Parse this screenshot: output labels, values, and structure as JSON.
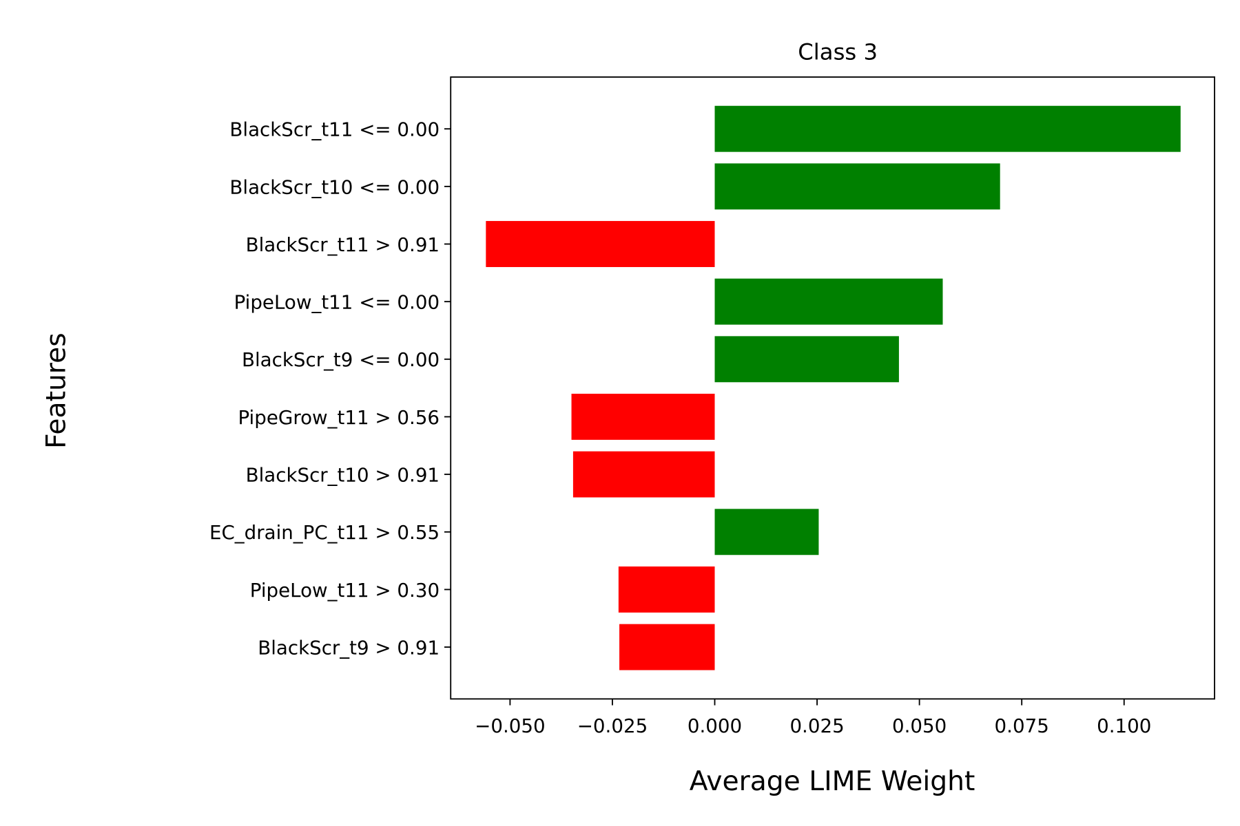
{
  "chart_data": {
    "type": "bar",
    "orientation": "horizontal",
    "title": "Class 3",
    "xlabel": "Average LIME Weight",
    "ylabel": "Features",
    "xlim": [
      -0.0645,
      0.1221
    ],
    "xticks": [
      -0.05,
      -0.025,
      0.0,
      0.025,
      0.05,
      0.075,
      0.1
    ],
    "xtick_labels": [
      "−0.050",
      "−0.025",
      "0.000",
      "0.025",
      "0.050",
      "0.075",
      "0.100"
    ],
    "categories": [
      "BlackScr_t11 <= 0.00",
      "BlackScr_t10 <= 0.00",
      "BlackScr_t11 > 0.91",
      "PipeLow_t11 <= 0.00",
      "BlackScr_t9 <= 0.00",
      "PipeGrow_t11 > 0.56",
      "BlackScr_t10 > 0.91",
      "EC_drain_PC_t11 > 0.55",
      "PipeLow_t11 > 0.30",
      "BlackScr_t9 > 0.91"
    ],
    "values": [
      0.1138,
      0.0697,
      -0.0559,
      0.0557,
      0.045,
      -0.035,
      -0.0346,
      0.0254,
      -0.0235,
      -0.0233
    ],
    "colors": {
      "positive": "#008000",
      "negative": "#ff0000"
    },
    "grid": false
  }
}
